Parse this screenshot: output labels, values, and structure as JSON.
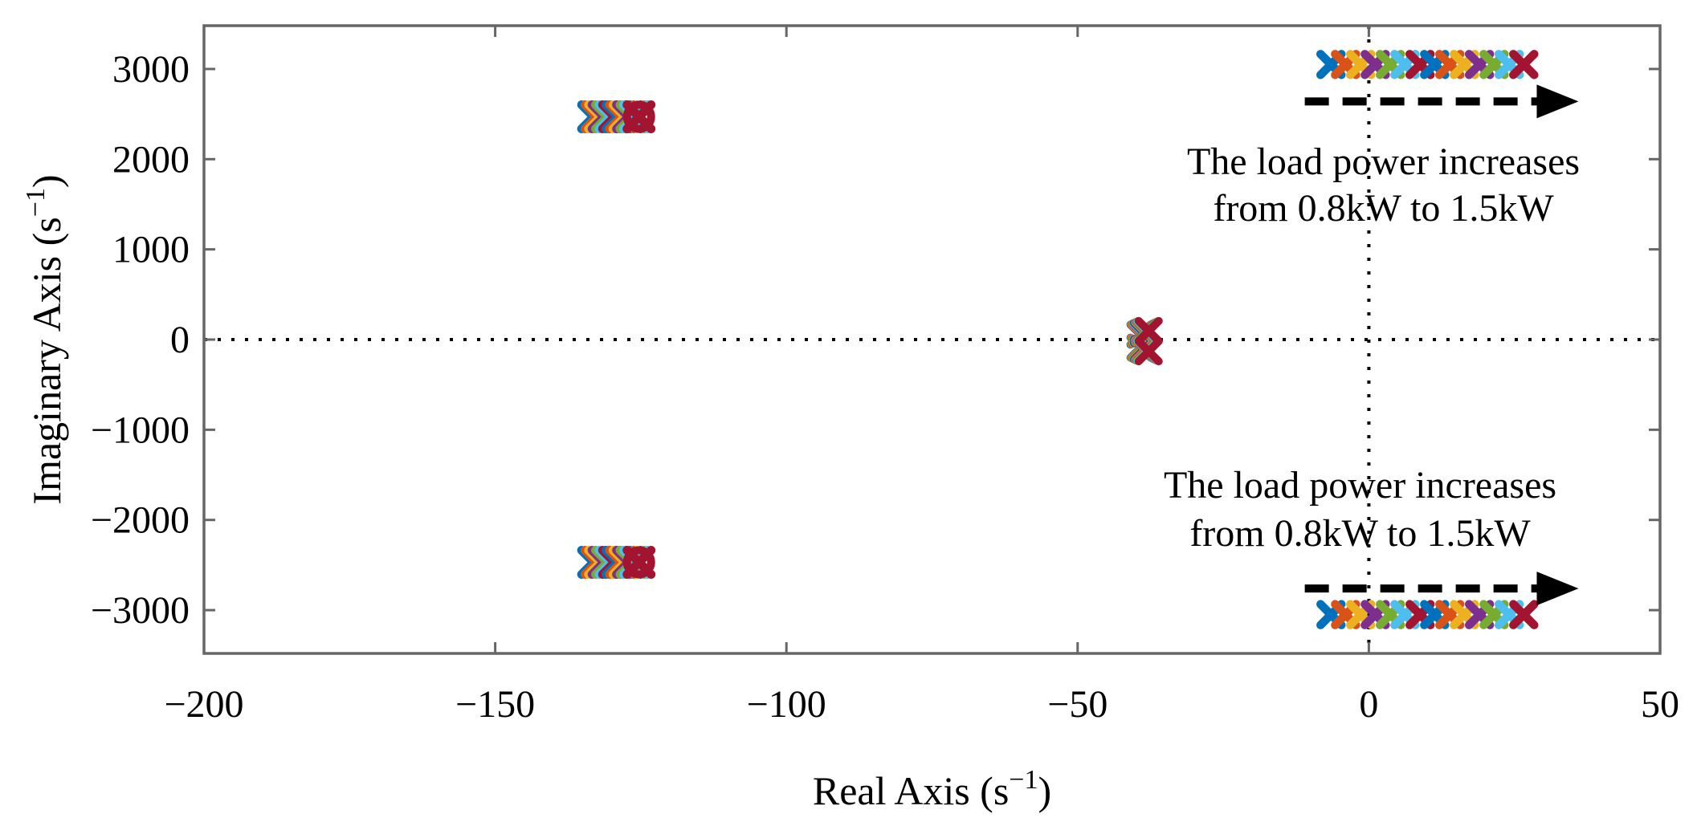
{
  "figure": {
    "background": "#ffffff",
    "frame_color": "#666666",
    "text_color": "#000000"
  },
  "chart_data": {
    "type": "scatter",
    "title": "",
    "xlabel": {
      "text": "Real Axis (s⁻¹)",
      "prefix": "Real Axis (s",
      "sup": "−1",
      "suffix": ")"
    },
    "ylabel": {
      "text": "Imaginary Axis (s⁻¹)",
      "prefix": "Imaginary Axis (s",
      "sup": "−1",
      "suffix": ")"
    },
    "xlim": [
      -200,
      50
    ],
    "ylim": [
      -3480,
      3480
    ],
    "xticks": [
      {
        "value": -200,
        "label": "−200"
      },
      {
        "value": -150,
        "label": "−150"
      },
      {
        "value": -100,
        "label": "−100"
      },
      {
        "value": -50,
        "label": "−50"
      },
      {
        "value": 0,
        "label": "0"
      },
      {
        "value": 50,
        "label": "50"
      }
    ],
    "yticks": [
      {
        "value": 3000,
        "label": "3000"
      },
      {
        "value": 2000,
        "label": "2000"
      },
      {
        "value": 1000,
        "label": "1000"
      },
      {
        "value": 0,
        "label": "0"
      },
      {
        "value": -1000,
        "label": "−1000"
      },
      {
        "value": -2000,
        "label": "−2000"
      },
      {
        "value": -3000,
        "label": "−3000"
      }
    ],
    "grid": false,
    "zero_lines": {
      "style": "dotted",
      "color": "#000000",
      "vertical_at_real": 0,
      "horizontal_at_imag": 0
    },
    "marker": "x",
    "num_load_steps": 14,
    "load_sweep": {
      "from_kW": 0.8,
      "to_kW": 1.5
    },
    "color_cycle": [
      "#0072BD",
      "#D95319",
      "#EDB120",
      "#7E2F8E",
      "#77AC30",
      "#4DBEEE",
      "#A2142F"
    ],
    "series": [
      {
        "name": "high-freq-pair-upper",
        "real": [
          -6.5,
          -4.0,
          -1.4,
          1.1,
          3.7,
          6.2,
          8.8,
          11.3,
          13.9,
          16.4,
          19.0,
          21.5,
          24.1,
          26.6
        ],
        "imag": 3050,
        "style": {
          "arm": 13,
          "stroke": 10.5
        }
      },
      {
        "name": "high-freq-pair-lower",
        "real": [
          -6.5,
          -4.0,
          -1.4,
          1.1,
          3.7,
          6.2,
          8.8,
          11.3,
          13.9,
          16.4,
          19.0,
          21.5,
          24.1,
          26.6
        ],
        "imag": -3050,
        "style": {
          "arm": 13,
          "stroke": 10.5
        }
      },
      {
        "name": "mid-freq-pair-upper",
        "real": [
          -133.1,
          -132.5,
          -131.9,
          -131.3,
          -130.7,
          -130.1,
          -129.5,
          -128.9,
          -128.3,
          -127.7,
          -127.1,
          -126.5,
          -125.9,
          -125.3
        ],
        "imag": 2470,
        "style": {
          "arm": 15,
          "stroke": 11,
          "circle_r": 15,
          "circle_stroke": 10
        },
        "end_circle": true
      },
      {
        "name": "mid-freq-pair-lower",
        "real": [
          -133.1,
          -132.5,
          -131.9,
          -131.3,
          -130.7,
          -130.1,
          -129.5,
          -128.9,
          -128.3,
          -127.7,
          -127.1,
          -126.5,
          -125.9,
          -125.3
        ],
        "imag": -2470,
        "style": {
          "arm": 15,
          "stroke": 11,
          "circle_r": 15,
          "circle_stroke": 10
        },
        "end_circle": true
      },
      {
        "name": "low-freq-pair-upper",
        "real": [
          -39.2,
          -39.1,
          -39.0,
          -38.9,
          -38.8,
          -38.7,
          -38.6,
          -38.5,
          -38.4,
          -38.3,
          -38.2,
          -38.1,
          -37.9,
          -37.8
        ],
        "imag": [
          55,
          58,
          61,
          64,
          67,
          70,
          73,
          76,
          79,
          83,
          86,
          89,
          92,
          95
        ],
        "style": {
          "arm": 12.5,
          "stroke": 10
        }
      },
      {
        "name": "low-freq-pair-lower",
        "real": [
          -39.2,
          -39.1,
          -39.0,
          -38.9,
          -38.8,
          -38.7,
          -38.6,
          -38.5,
          -38.4,
          -38.3,
          -38.2,
          -38.1,
          -37.9,
          -37.8
        ],
        "imag": [
          -90,
          -93,
          -96,
          -99,
          -102,
          -105,
          -108,
          -112,
          -115,
          -118,
          -121,
          -124,
          -127,
          -130
        ],
        "style": {
          "arm": 12.5,
          "stroke": 10
        }
      }
    ],
    "arrows": [
      {
        "name": "top-load-increase-arrow",
        "real_from": -11,
        "real_to": 36,
        "imag": 2640,
        "style": "dashed",
        "color": "#000000"
      },
      {
        "name": "bottom-load-increase-arrow",
        "real_from": -11,
        "real_to": 36,
        "imag": -2760,
        "style": "dashed",
        "color": "#000000"
      }
    ],
    "annotations": [
      {
        "name": "top-annotation",
        "lines": [
          "The load power increases",
          "from 0.8kW to 1.5kW"
        ],
        "real": 2.5,
        "imag_lines": [
          1985,
          1468
        ]
      },
      {
        "name": "bottom-annotation",
        "lines": [
          "The load power increases",
          "from 0.8kW to 1.5kW"
        ],
        "real": -1.5,
        "imag_lines": [
          -1602,
          -2136
        ]
      }
    ]
  }
}
